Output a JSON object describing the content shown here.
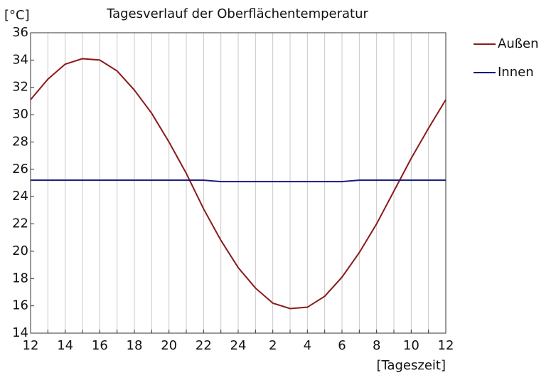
{
  "chart_data": {
    "type": "line",
    "title": "Tagesverlauf der Oberflächentemperatur",
    "y_label": "[°C]",
    "x_label": "[Tageszeit]",
    "categories": [
      "12",
      null,
      "14",
      null,
      "16",
      null,
      "18",
      null,
      "20",
      null,
      "22",
      null,
      "24",
      null,
      "2",
      null,
      "4",
      null,
      "6",
      null,
      "8",
      null,
      "10",
      null,
      "12"
    ],
    "series": [
      {
        "name": "Außen",
        "color": "#8b1a1a",
        "values": [
          31.1,
          32.6,
          33.7,
          34.1,
          34.0,
          33.2,
          31.8,
          30.1,
          28.0,
          25.7,
          23.1,
          20.8,
          18.8,
          17.3,
          16.2,
          15.8,
          15.9,
          16.7,
          18.1,
          19.9,
          22.0,
          24.4,
          26.8,
          29.0,
          31.1
        ]
      },
      {
        "name": "Innen",
        "color": "#1a1a7a",
        "values": [
          25.2,
          25.2,
          25.2,
          25.2,
          25.2,
          25.2,
          25.2,
          25.2,
          25.2,
          25.2,
          25.2,
          25.1,
          25.1,
          25.1,
          25.1,
          25.1,
          25.1,
          25.1,
          25.1,
          25.2,
          25.2,
          25.2,
          25.2,
          25.2,
          25.2
        ]
      }
    ],
    "ylim": [
      14,
      36
    ],
    "yticks": [
      14,
      16,
      18,
      20,
      22,
      24,
      26,
      28,
      30,
      32,
      34,
      36
    ],
    "grid": "x",
    "legend": "right"
  }
}
